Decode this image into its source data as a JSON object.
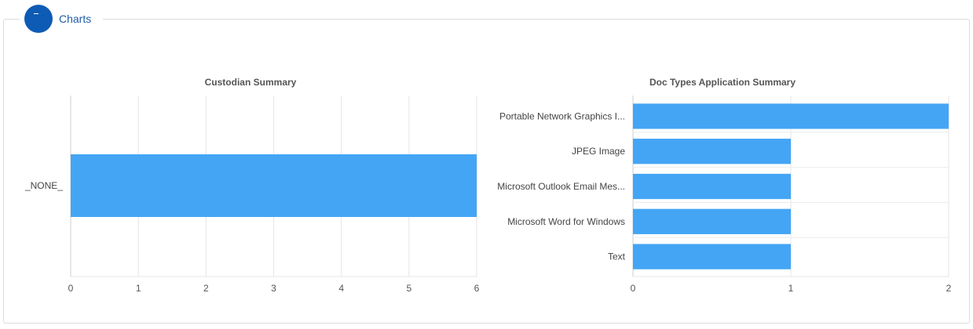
{
  "section": {
    "title": "Charts"
  },
  "chart_data": [
    {
      "type": "bar",
      "orientation": "horizontal",
      "title": "Custodian Summary",
      "categories": [
        "_NONE_"
      ],
      "values": [
        6
      ],
      "xlim": [
        0,
        6
      ],
      "ticks": [
        "0",
        "1",
        "2",
        "3",
        "4",
        "5",
        "6"
      ],
      "color": "#44a5f5",
      "grid": true
    },
    {
      "type": "bar",
      "orientation": "horizontal",
      "title": "Doc Types Application Summary",
      "categories": [
        "Portable Network Graphics I...",
        "JPEG Image",
        "Microsoft Outlook Email Mes...",
        "Microsoft Word for Windows",
        "Text"
      ],
      "values": [
        2,
        1,
        1,
        1,
        1
      ],
      "xlim": [
        0,
        2
      ],
      "ticks": [
        "0",
        "1",
        "2"
      ],
      "color": "#44a5f5",
      "grid": true
    }
  ]
}
